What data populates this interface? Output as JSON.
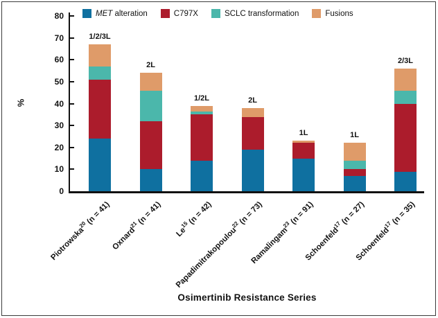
{
  "figure": {
    "x_axis_title": "Osimertinib Resistance Series",
    "y_axis_title": "%"
  },
  "chart_data": {
    "type": "bar",
    "stacked": true,
    "title": "",
    "xlabel": "Osimertinib Resistance Series",
    "ylabel": "%",
    "ylim": [
      0,
      80
    ],
    "yticks": [
      0,
      10,
      20,
      30,
      40,
      50,
      60,
      70,
      80
    ],
    "grid": false,
    "legend_position": "top-inside",
    "categories": [
      {
        "author": "Piotrowska",
        "ref": "20",
        "n_label": "(n = 41)",
        "line_label": "1/2/3L",
        "total": 67
      },
      {
        "author": "Oxnard",
        "ref": "21",
        "n_label": "(n = 41)",
        "line_label": "2L",
        "total": 54
      },
      {
        "author": "Le",
        "ref": "15",
        "n_label": "(n = 42)",
        "line_label": "1/2L",
        "total": 39
      },
      {
        "author": "Papadimitrakopoulou",
        "ref": "22",
        "n_label": "(n = 73)",
        "line_label": "2L",
        "total": 38
      },
      {
        "author": "Ramalingam",
        "ref": "23",
        "n_label": "(n = 91)",
        "line_label": "1L",
        "total": 23
      },
      {
        "author": "Schoenfeld",
        "ref": "17",
        "n_label": "(n = 27)",
        "line_label": "1L",
        "total": 22
      },
      {
        "author": "Schoenfeld",
        "ref": "17",
        "n_label": "(n = 35)",
        "line_label": "2/3L",
        "total": 56
      }
    ],
    "series": [
      {
        "name": "MET alteration",
        "italic_word": "MET",
        "color": "#0F70A0",
        "values": [
          24,
          10,
          14,
          19,
          15,
          7,
          9
        ]
      },
      {
        "name": "C797X",
        "italic_word": "",
        "color": "#AC1C2C",
        "values": [
          27,
          22,
          21,
          15,
          7,
          3,
          31
        ]
      },
      {
        "name": "SCLC transformation",
        "italic_word": "",
        "color": "#4BB7AB",
        "values": [
          6,
          14,
          1.5,
          0,
          0,
          4,
          6
        ]
      },
      {
        "name": "Fusions",
        "italic_word": "",
        "color": "#DF9B69",
        "values": [
          10,
          8,
          2.5,
          4,
          1,
          8,
          10
        ]
      }
    ]
  }
}
